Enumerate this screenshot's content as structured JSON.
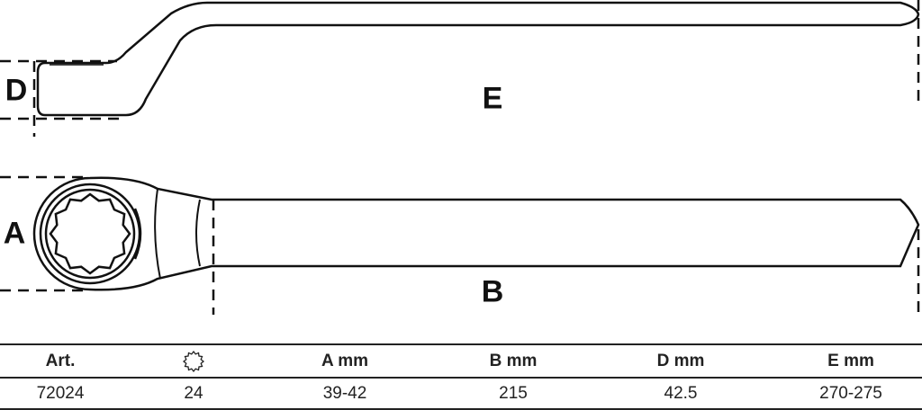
{
  "drawing": {
    "labels": {
      "D": "D",
      "E": "E",
      "A": "A",
      "B": "B"
    }
  },
  "table": {
    "headers": [
      {
        "key": "art",
        "label": "Art."
      },
      {
        "key": "size",
        "label": "",
        "icon": "twelve-point-socket-icon"
      },
      {
        "key": "a",
        "label": "A  mm"
      },
      {
        "key": "b",
        "label": "B  mm"
      },
      {
        "key": "d",
        "label": "D  mm"
      },
      {
        "key": "e",
        "label": "E  mm"
      }
    ],
    "rows": [
      [
        "72024",
        "24",
        "39-42",
        "215",
        "42.5",
        "270-275"
      ]
    ]
  }
}
